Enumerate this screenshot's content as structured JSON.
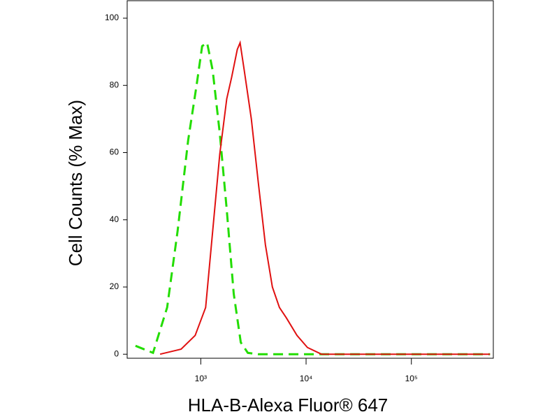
{
  "chart_data": {
    "type": "line",
    "x_label": "HLA-B-Alexa Fluor® 647",
    "y_label": "Cell Counts (% Max)",
    "xscale": "log",
    "xlim": [
      200,
      600000
    ],
    "xticks": [
      {
        "value": 1000,
        "label": "10³"
      },
      {
        "value": 10000,
        "label": "10⁴"
      },
      {
        "value": 100000,
        "label": "10⁵"
      }
    ],
    "ylim": [
      -1.2,
      105.2
    ],
    "yticks": [
      0,
      20,
      40,
      60,
      80,
      100
    ],
    "grid": false,
    "series": [
      {
        "color": "#22dd00",
        "dash": true,
        "x": [
          240,
          352,
          479,
          603,
          759,
          912,
          1031,
          1148,
          1298,
          1514,
          1765,
          2057,
          2399,
          2797,
          3521,
          558000
        ],
        "values": [
          2.5,
          0.4,
          13.9,
          36.7,
          63.7,
          80,
          91.7,
          92.7,
          84.4,
          65.8,
          43,
          18,
          3.5,
          0.4,
          0,
          0
        ]
      },
      {
        "color": "#e01010",
        "dash": false,
        "x": [
          411,
          651,
          884,
          1113,
          1298,
          1514,
          1765,
          1965,
          2221,
          2363,
          2590,
          3020,
          3521,
          4106,
          4786,
          5582,
          6506,
          8190,
          10310,
          14020,
          558000
        ],
        "values": [
          0,
          1.5,
          5.6,
          13.9,
          36.7,
          59.5,
          76,
          82.4,
          90.7,
          92.7,
          84.4,
          70,
          51,
          32.6,
          20,
          13.9,
          10.8,
          5.6,
          2,
          0,
          0
        ]
      }
    ]
  }
}
